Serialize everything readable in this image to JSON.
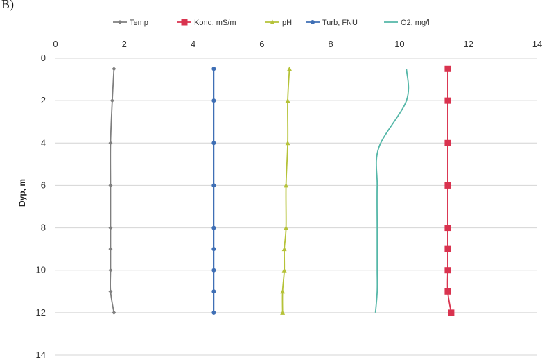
{
  "panel_label": "B)",
  "chart_data": {
    "type": "line",
    "orientation": "depth-profile",
    "ylabel": "Dyp, m",
    "xlabel": "",
    "xlim": [
      0,
      14
    ],
    "ylim": [
      0,
      14
    ],
    "y_inverted": true,
    "xticks": [
      0,
      2,
      4,
      6,
      8,
      10,
      12,
      14
    ],
    "yticks": [
      0,
      2,
      4,
      6,
      8,
      10,
      12,
      14
    ],
    "grid": "horizontal",
    "legend_placement": "top",
    "series": [
      {
        "name": "Temp",
        "color": "#7f7f7f",
        "marker": "diamond",
        "points": [
          [
            1.7,
            0.5
          ],
          [
            1.65,
            2
          ],
          [
            1.6,
            4
          ],
          [
            1.6,
            6
          ],
          [
            1.6,
            8
          ],
          [
            1.6,
            9
          ],
          [
            1.6,
            10
          ],
          [
            1.6,
            11
          ],
          [
            1.7,
            12
          ]
        ]
      },
      {
        "name": "Kond, mS/m",
        "color": "#d9334f",
        "marker": "square",
        "points": [
          [
            11.4,
            0.5
          ],
          [
            11.4,
            2
          ],
          [
            11.4,
            4
          ],
          [
            11.4,
            6
          ],
          [
            11.4,
            8
          ],
          [
            11.4,
            9
          ],
          [
            11.4,
            10
          ],
          [
            11.4,
            11
          ],
          [
            11.5,
            12
          ]
        ]
      },
      {
        "name": "pH",
        "color": "#b5c238",
        "marker": "triangle",
        "points": [
          [
            6.8,
            0.5
          ],
          [
            6.75,
            2
          ],
          [
            6.75,
            4
          ],
          [
            6.7,
            6
          ],
          [
            6.7,
            8
          ],
          [
            6.65,
            9
          ],
          [
            6.65,
            10
          ],
          [
            6.6,
            11
          ],
          [
            6.6,
            12
          ]
        ]
      },
      {
        "name": "Turb, FNU",
        "color": "#3f6fb5",
        "marker": "dot",
        "points": [
          [
            4.6,
            0.5
          ],
          [
            4.6,
            2
          ],
          [
            4.6,
            4
          ],
          [
            4.6,
            6
          ],
          [
            4.6,
            8
          ],
          [
            4.6,
            9
          ],
          [
            4.6,
            10
          ],
          [
            4.6,
            11
          ],
          [
            4.6,
            12
          ]
        ]
      },
      {
        "name": "O2, mg/l",
        "color": "#55b7a8",
        "marker": "none",
        "points": [
          [
            10.2,
            0.5
          ],
          [
            10.2,
            2
          ],
          [
            9.4,
            4.2
          ],
          [
            9.35,
            6
          ],
          [
            9.35,
            8
          ],
          [
            9.35,
            9
          ],
          [
            9.35,
            10
          ],
          [
            9.35,
            11
          ],
          [
            9.3,
            12
          ]
        ]
      }
    ]
  }
}
